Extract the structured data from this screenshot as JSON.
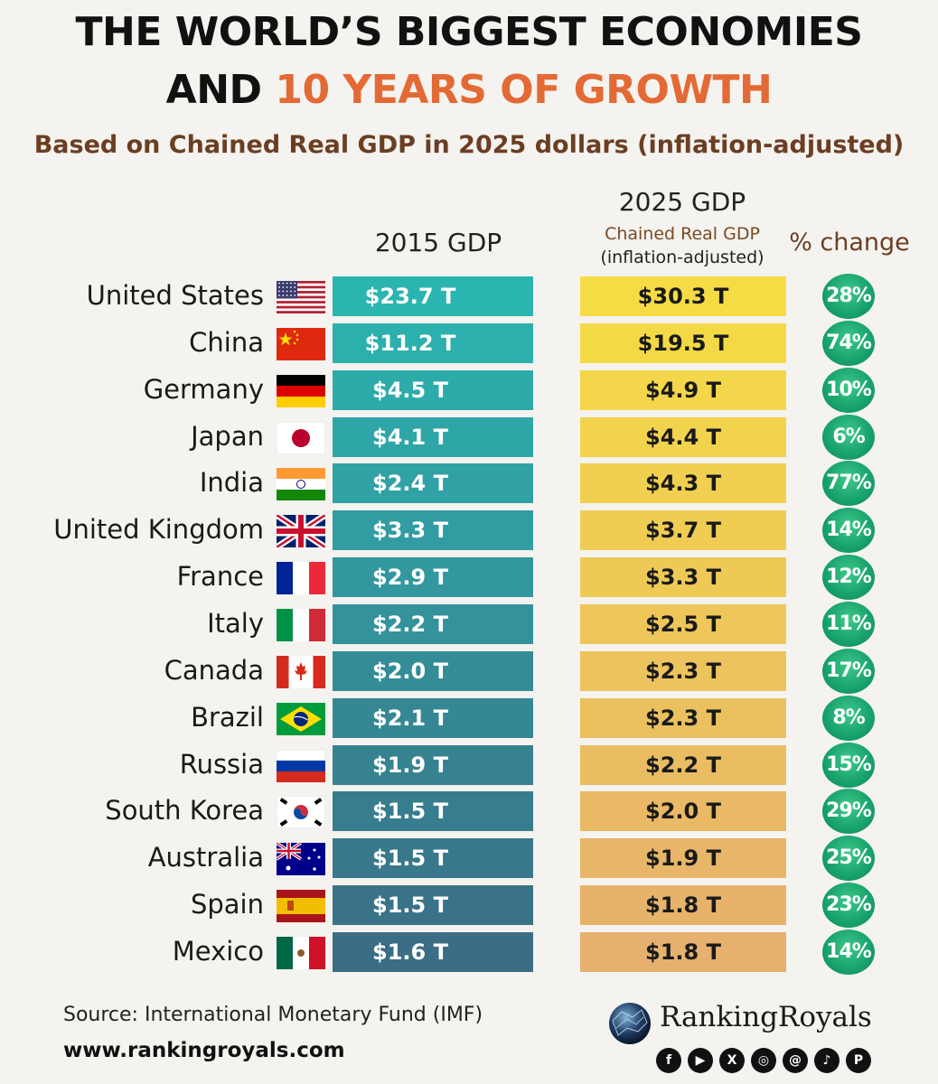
{
  "title_line1": "THE WORLD’S BIGGEST ECONOMIES",
  "title_line2_prefix": "AND ",
  "title_line2_accent": "10 YEARS OF GROWTH",
  "subtitle": "Based on Chained Real GDP in 2025 dollars (inflation-adjusted)",
  "headers": {
    "gdp2015": "2015 GDP",
    "gdp2025": "2025 GDP",
    "gdp2025_sub1": "Chained Real GDP",
    "gdp2025_sub2": "(inflation-adjusted)",
    "pct": "% change"
  },
  "colors": {
    "bar2015_top": "#2bb5b0",
    "bar2015_bottom": "#3b6e85",
    "bar2025_top": "#f5dc44",
    "bar2025_bottom": "#e6b06e",
    "pct_circle": "#17a16b",
    "accent": "#e36a35"
  },
  "chart_data": {
    "type": "table",
    "columns": [
      "2015 GDP",
      "2025 GDP",
      "% change"
    ],
    "rows": [
      {
        "country": "United States",
        "flag": "us-flag-icon",
        "gdp2015": "$23.7 T",
        "gdp2025": "$30.3 T",
        "pct": "28%"
      },
      {
        "country": "China",
        "flag": "china-flag-icon",
        "gdp2015": "$11.2 T",
        "gdp2025": "$19.5 T",
        "pct": "74%"
      },
      {
        "country": "Germany",
        "flag": "germany-flag-icon",
        "gdp2015": "$4.5 T",
        "gdp2025": "$4.9 T",
        "pct": "10%"
      },
      {
        "country": "Japan",
        "flag": "japan-flag-icon",
        "gdp2015": "$4.1 T",
        "gdp2025": "$4.4 T",
        "pct": "6%"
      },
      {
        "country": "India",
        "flag": "india-flag-icon",
        "gdp2015": "$2.4 T",
        "gdp2025": "$4.3 T",
        "pct": "77%"
      },
      {
        "country": "United Kingdom",
        "flag": "uk-flag-icon",
        "gdp2015": "$3.3 T",
        "gdp2025": "$3.7 T",
        "pct": "14%"
      },
      {
        "country": "France",
        "flag": "france-flag-icon",
        "gdp2015": "$2.9 T",
        "gdp2025": "$3.3 T",
        "pct": "12%"
      },
      {
        "country": "Italy",
        "flag": "italy-flag-icon",
        "gdp2015": "$2.2 T",
        "gdp2025": "$2.5 T",
        "pct": "11%"
      },
      {
        "country": "Canada",
        "flag": "canada-flag-icon",
        "gdp2015": "$2.0 T",
        "gdp2025": "$2.3 T",
        "pct": "17%"
      },
      {
        "country": "Brazil",
        "flag": "brazil-flag-icon",
        "gdp2015": "$2.1 T",
        "gdp2025": "$2.3 T",
        "pct": "8%"
      },
      {
        "country": "Russia",
        "flag": "russia-flag-icon",
        "gdp2015": "$1.9 T",
        "gdp2025": "$2.2 T",
        "pct": "15%"
      },
      {
        "country": "South Korea",
        "flag": "south-korea-flag-icon",
        "gdp2015": "$1.5 T",
        "gdp2025": "$2.0 T",
        "pct": "29%"
      },
      {
        "country": "Australia",
        "flag": "australia-flag-icon",
        "gdp2015": "$1.5 T",
        "gdp2025": "$1.9 T",
        "pct": "25%"
      },
      {
        "country": "Spain",
        "flag": "spain-flag-icon",
        "gdp2015": "$1.5 T",
        "gdp2025": "$1.8 T",
        "pct": "23%"
      },
      {
        "country": "Mexico",
        "flag": "mexico-flag-icon",
        "gdp2015": "$1.6 T",
        "gdp2025": "$1.8 T",
        "pct": "14%"
      }
    ]
  },
  "footer": {
    "source": "Source: International Monetary Fund (IMF)",
    "website": "www.rankingroyals.com",
    "brand": "RankingRoyals",
    "socials": [
      "facebook-icon",
      "youtube-icon",
      "x-icon",
      "instagram-icon",
      "threads-icon",
      "tiktok-icon",
      "pinterest-icon"
    ]
  }
}
